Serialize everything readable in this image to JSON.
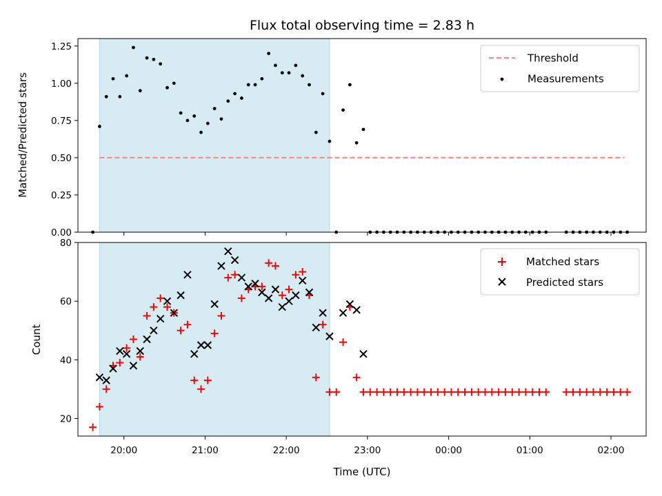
{
  "chart_data": [
    {
      "panel": "top",
      "type": "scatter",
      "title": "Flux total observing time = 2.83 h",
      "ylabel": "Matched/Predicted stars",
      "ylim": [
        0,
        1.3
      ],
      "yticks": [
        0,
        0.25,
        0.5,
        0.75,
        1.0,
        1.25
      ],
      "ytick_labels": [
        "0.00",
        "0.25",
        "0.50",
        "0.75",
        "1.00",
        "1.25"
      ],
      "shaded_region": {
        "x": [
          "19:42",
          "22:32"
        ],
        "color": "#add8e6"
      },
      "threshold": {
        "name": "Threshold",
        "value": 0.5,
        "x": [
          "19:42",
          "02:10"
        ],
        "color": "#ff8080"
      },
      "series": [
        {
          "name": "Measurements",
          "color": "#000000",
          "points": [
            [
              "19:37",
              0.0
            ],
            [
              "19:42",
              0.71
            ],
            [
              "19:47",
              0.91
            ],
            [
              "19:52",
              1.03
            ],
            [
              "19:57",
              0.91
            ],
            [
              "20:02",
              1.05
            ],
            [
              "20:07",
              1.24
            ],
            [
              "20:12",
              0.95
            ],
            [
              "20:17",
              1.17
            ],
            [
              "20:22",
              1.16
            ],
            [
              "20:27",
              1.13
            ],
            [
              "20:32",
              0.97
            ],
            [
              "20:37",
              1.0
            ],
            [
              "20:42",
              0.8
            ],
            [
              "20:47",
              0.75
            ],
            [
              "20:52",
              0.78
            ],
            [
              "20:57",
              0.67
            ],
            [
              "21:02",
              0.73
            ],
            [
              "21:07",
              0.83
            ],
            [
              "21:12",
              0.76
            ],
            [
              "21:17",
              0.88
            ],
            [
              "21:22",
              0.93
            ],
            [
              "21:27",
              0.9
            ],
            [
              "21:32",
              0.99
            ],
            [
              "21:37",
              0.99
            ],
            [
              "21:42",
              1.03
            ],
            [
              "21:47",
              1.2
            ],
            [
              "21:52",
              1.12
            ],
            [
              "21:57",
              1.07
            ],
            [
              "22:02",
              1.07
            ],
            [
              "22:07",
              1.12
            ],
            [
              "22:12",
              1.05
            ],
            [
              "22:17",
              0.99
            ],
            [
              "22:22",
              0.67
            ],
            [
              "22:27",
              0.93
            ],
            [
              "22:32",
              0.61
            ],
            [
              "22:37",
              0.0
            ],
            [
              "22:42",
              0.82
            ],
            [
              "22:47",
              0.99
            ],
            [
              "22:52",
              0.6
            ],
            [
              "22:57",
              0.69
            ],
            [
              "23:02",
              0.0
            ],
            [
              "23:07",
              0.0
            ],
            [
              "23:12",
              0.0
            ],
            [
              "23:17",
              0.0
            ],
            [
              "23:22",
              0.0
            ],
            [
              "23:27",
              0.0
            ],
            [
              "23:32",
              0.0
            ],
            [
              "23:37",
              0.0
            ],
            [
              "23:42",
              0.0
            ],
            [
              "23:47",
              0.0
            ],
            [
              "23:52",
              0.0
            ],
            [
              "23:57",
              0.0
            ],
            [
              "00:02",
              0.0
            ],
            [
              "00:07",
              0.0
            ],
            [
              "00:12",
              0.0
            ],
            [
              "00:17",
              0.0
            ],
            [
              "00:22",
              0.0
            ],
            [
              "00:27",
              0.0
            ],
            [
              "00:32",
              0.0
            ],
            [
              "00:37",
              0.0
            ],
            [
              "00:42",
              0.0
            ],
            [
              "00:47",
              0.0
            ],
            [
              "00:52",
              0.0
            ],
            [
              "00:57",
              0.0
            ],
            [
              "01:02",
              0.0
            ],
            [
              "01:07",
              0.0
            ],
            [
              "01:12",
              0.0
            ],
            [
              "01:27",
              0.0
            ],
            [
              "01:32",
              0.0
            ],
            [
              "01:37",
              0.0
            ],
            [
              "01:42",
              0.0
            ],
            [
              "01:47",
              0.0
            ],
            [
              "01:52",
              0.0
            ],
            [
              "01:57",
              0.0
            ],
            [
              "02:02",
              0.0
            ],
            [
              "02:07",
              0.0
            ],
            [
              "02:12",
              0.0
            ]
          ]
        }
      ],
      "legend": {
        "placement": "top-right",
        "entries": [
          "Threshold",
          "Measurements"
        ]
      }
    },
    {
      "panel": "bottom",
      "type": "scatter",
      "xlabel": "Time (UTC)",
      "ylabel": "Count",
      "ylim": [
        14,
        80
      ],
      "yticks": [
        20,
        40,
        60,
        80
      ],
      "ytick_labels": [
        "20",
        "40",
        "60",
        "80"
      ],
      "xticks": [
        "20:00",
        "21:00",
        "22:00",
        "23:00",
        "00:00",
        "01:00",
        "02:00"
      ],
      "xlim": [
        "19:26",
        "02:26"
      ],
      "shaded_region": {
        "x": [
          "19:42",
          "22:32"
        ],
        "color": "#add8e6"
      },
      "series": [
        {
          "name": "Matched stars",
          "marker": "plus",
          "color": "#ff0000",
          "points": [
            [
              "19:37",
              17
            ],
            [
              "19:42",
              24
            ],
            [
              "19:47",
              30
            ],
            [
              "19:52",
              38
            ],
            [
              "19:57",
              39
            ],
            [
              "20:02",
              44
            ],
            [
              "20:07",
              47
            ],
            [
              "20:12",
              41
            ],
            [
              "20:17",
              55
            ],
            [
              "20:22",
              58
            ],
            [
              "20:27",
              61
            ],
            [
              "20:32",
              58
            ],
            [
              "20:37",
              56
            ],
            [
              "20:42",
              50
            ],
            [
              "20:47",
              52
            ],
            [
              "20:52",
              33
            ],
            [
              "20:57",
              30
            ],
            [
              "21:02",
              33
            ],
            [
              "21:07",
              49
            ],
            [
              "21:12",
              55
            ],
            [
              "21:17",
              68
            ],
            [
              "21:22",
              69
            ],
            [
              "21:27",
              61
            ],
            [
              "21:32",
              64
            ],
            [
              "21:37",
              65
            ],
            [
              "21:42",
              65
            ],
            [
              "21:47",
              73
            ],
            [
              "21:52",
              72
            ],
            [
              "21:57",
              62
            ],
            [
              "22:02",
              64
            ],
            [
              "22:07",
              69
            ],
            [
              "22:12",
              70
            ],
            [
              "22:17",
              62
            ],
            [
              "22:22",
              34
            ],
            [
              "22:27",
              52
            ],
            [
              "22:32",
              29
            ],
            [
              "22:37",
              29
            ],
            [
              "22:42",
              46
            ],
            [
              "22:47",
              58
            ],
            [
              "22:52",
              34
            ],
            [
              "22:57",
              29
            ],
            [
              "23:02",
              29
            ],
            [
              "23:07",
              29
            ],
            [
              "23:12",
              29
            ],
            [
              "23:17",
              29
            ],
            [
              "23:22",
              29
            ],
            [
              "23:27",
              29
            ],
            [
              "23:32",
              29
            ],
            [
              "23:37",
              29
            ],
            [
              "23:42",
              29
            ],
            [
              "23:47",
              29
            ],
            [
              "23:52",
              29
            ],
            [
              "23:57",
              29
            ],
            [
              "00:02",
              29
            ],
            [
              "00:07",
              29
            ],
            [
              "00:12",
              29
            ],
            [
              "00:17",
              29
            ],
            [
              "00:22",
              29
            ],
            [
              "00:27",
              29
            ],
            [
              "00:32",
              29
            ],
            [
              "00:37",
              29
            ],
            [
              "00:42",
              29
            ],
            [
              "00:47",
              29
            ],
            [
              "00:52",
              29
            ],
            [
              "00:57",
              29
            ],
            [
              "01:02",
              29
            ],
            [
              "01:07",
              29
            ],
            [
              "01:12",
              29
            ],
            [
              "01:27",
              29
            ],
            [
              "01:32",
              29
            ],
            [
              "01:37",
              29
            ],
            [
              "01:42",
              29
            ],
            [
              "01:47",
              29
            ],
            [
              "01:52",
              29
            ],
            [
              "01:57",
              29
            ],
            [
              "02:02",
              29
            ],
            [
              "02:07",
              29
            ],
            [
              "02:12",
              29
            ]
          ]
        },
        {
          "name": "Predicted stars",
          "marker": "x",
          "color": "#000000",
          "points": [
            [
              "19:42",
              34
            ],
            [
              "19:47",
              33
            ],
            [
              "19:52",
              37
            ],
            [
              "19:57",
              43
            ],
            [
              "20:02",
              42
            ],
            [
              "20:07",
              38
            ],
            [
              "20:12",
              43
            ],
            [
              "20:17",
              47
            ],
            [
              "20:22",
              50
            ],
            [
              "20:27",
              54
            ],
            [
              "20:32",
              60
            ],
            [
              "20:37",
              56
            ],
            [
              "20:42",
              62
            ],
            [
              "20:47",
              69
            ],
            [
              "20:52",
              42
            ],
            [
              "20:57",
              45
            ],
            [
              "21:02",
              45
            ],
            [
              "21:07",
              59
            ],
            [
              "21:12",
              72
            ],
            [
              "21:17",
              77
            ],
            [
              "21:22",
              74
            ],
            [
              "21:27",
              68
            ],
            [
              "21:32",
              65
            ],
            [
              "21:37",
              66
            ],
            [
              "21:42",
              63
            ],
            [
              "21:47",
              61
            ],
            [
              "21:52",
              64
            ],
            [
              "21:57",
              58
            ],
            [
              "22:02",
              60
            ],
            [
              "22:07",
              62
            ],
            [
              "22:12",
              67
            ],
            [
              "22:17",
              63
            ],
            [
              "22:22",
              51
            ],
            [
              "22:27",
              56
            ],
            [
              "22:32",
              48
            ],
            [
              "22:42",
              56
            ],
            [
              "22:47",
              59
            ],
            [
              "22:52",
              57
            ],
            [
              "22:57",
              42
            ]
          ]
        }
      ],
      "legend": {
        "placement": "top-right",
        "entries": [
          "Matched stars",
          "Predicted stars"
        ]
      }
    }
  ]
}
